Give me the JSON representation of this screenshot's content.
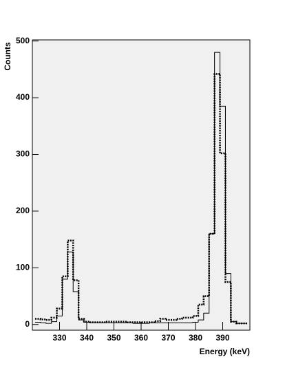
{
  "chart_data": {
    "type": "histogram",
    "x_label": "Energy (keV)",
    "y_label": "Counts",
    "bins": [
      321,
      323,
      325,
      327,
      329,
      331,
      333,
      335,
      337,
      339,
      341,
      343,
      345,
      347,
      349,
      351,
      353,
      355,
      357,
      359,
      361,
      363,
      365,
      367,
      369,
      371,
      373,
      375,
      377,
      379,
      381,
      383,
      385,
      387,
      389,
      391,
      393,
      395,
      397,
      399
    ],
    "series": [
      {
        "color": "#000000",
        "line_style": "solid",
        "values": [
          4,
          3,
          2,
          5,
          15,
          80,
          128,
          58,
          8,
          4,
          3,
          3,
          3,
          3,
          3,
          3,
          3,
          3,
          2,
          2,
          2,
          3,
          3,
          3,
          3,
          3,
          3,
          3,
          3,
          4,
          8,
          20,
          160,
          480,
          385,
          90,
          5,
          2,
          2
        ]
      },
      {
        "color": "#000000",
        "line_style": "dotted",
        "values": [
          10,
          9,
          8,
          12,
          28,
          85,
          148,
          78,
          10,
          5,
          4,
          4,
          4,
          5,
          5,
          5,
          5,
          4,
          4,
          4,
          4,
          4,
          6,
          10,
          8,
          8,
          10,
          12,
          12,
          15,
          35,
          50,
          160,
          442,
          302,
          75,
          5,
          2,
          2
        ]
      }
    ],
    "xlim": [
      320,
      400
    ],
    "ylim": [
      -10,
      502
    ],
    "xticks": [
      330,
      340,
      350,
      360,
      370,
      380,
      390
    ],
    "yticks": [
      0,
      100,
      200,
      300,
      400,
      500
    ],
    "background": "#f0f0f0"
  }
}
